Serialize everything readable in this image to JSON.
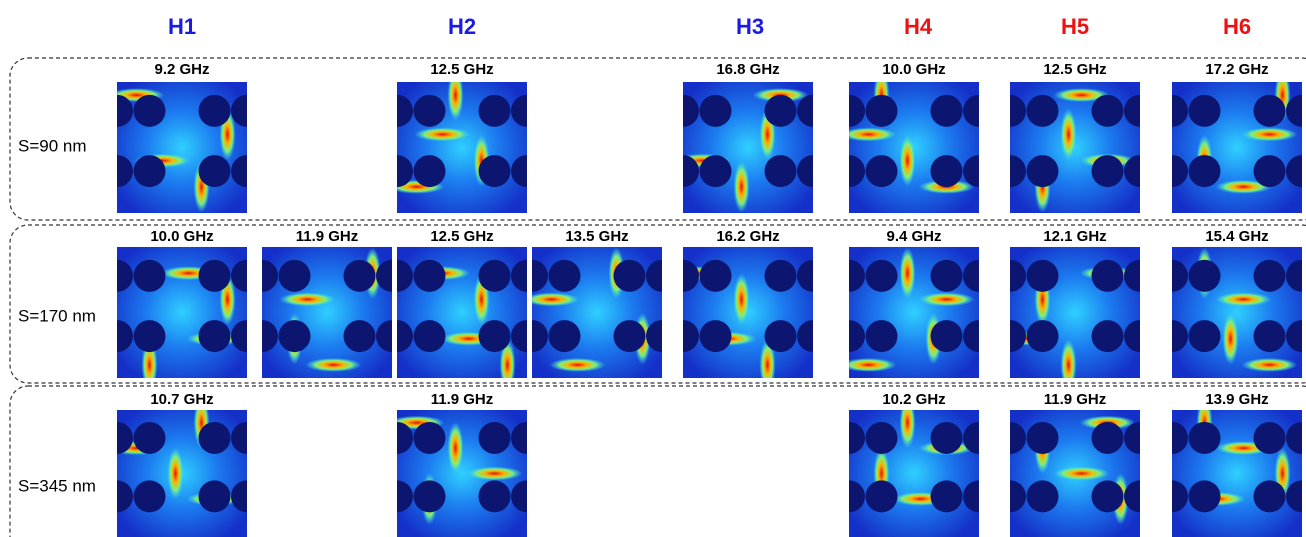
{
  "headers": [
    {
      "label": "H1",
      "color": "#1a1ae0"
    },
    {
      "label": "H2",
      "color": "#1a1ae0"
    },
    {
      "label": "H3",
      "color": "#1a1ae0"
    },
    {
      "label": "H4",
      "color": "#ee1111"
    },
    {
      "label": "H5",
      "color": "#ee1111"
    },
    {
      "label": "H6",
      "color": "#ee1111"
    }
  ],
  "rows": [
    {
      "label": "S=90 nm",
      "panels": [
        "9.2 GHz",
        "12.5 GHz",
        "16.8 GHz",
        "10.0 GHz",
        "12.5 GHz",
        "17.2 GHz"
      ]
    },
    {
      "label": "S=170 nm",
      "panels": [
        "10.0 GHz",
        "11.9 GHz",
        "12.5 GHz",
        "13.5 GHz",
        "16.2 GHz",
        "9.4 GHz",
        "12.1 GHz",
        "15.4 GHz"
      ]
    },
    {
      "label": "S=345 nm",
      "panels": [
        "10.7 GHz",
        "11.9 GHz",
        "10.2 GHz",
        "11.9 GHz",
        "13.9 GHz"
      ]
    }
  ]
}
